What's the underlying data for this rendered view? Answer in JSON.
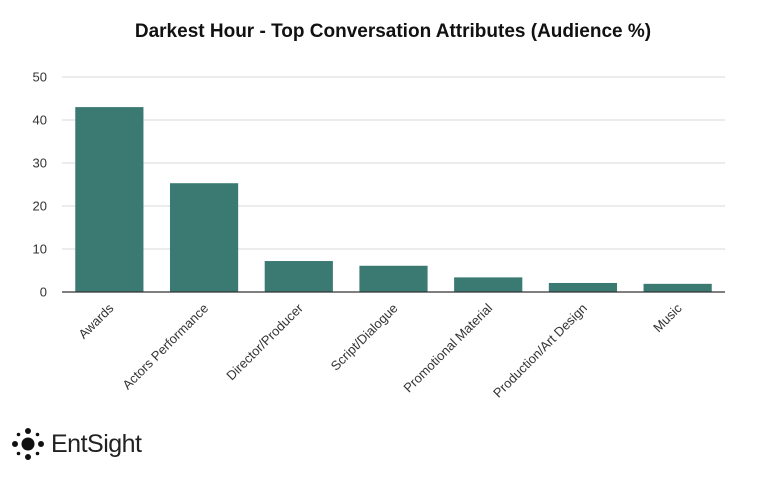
{
  "chart_data": {
    "type": "bar",
    "title": "Darkest Hour - Top Conversation Attributes (Audience %)",
    "categories": [
      "Awards",
      "Actors Performance",
      "Director/Producer",
      "Script/Dialogue",
      "Promotional Material",
      "Production/Art Design",
      "Music"
    ],
    "values": [
      43,
      25.3,
      7.2,
      6.1,
      3.4,
      2.1,
      1.9
    ],
    "yticks": [
      "0",
      "10",
      "20",
      "30",
      "40",
      "50"
    ],
    "ylim": [
      0,
      50
    ],
    "grid": true,
    "colors": {
      "bar": "#3a7a73",
      "grid": "#d9d9d9",
      "axis": "#333333"
    }
  },
  "brand": {
    "name": "EntSight",
    "logo_icon": "dots-logo-icon"
  }
}
